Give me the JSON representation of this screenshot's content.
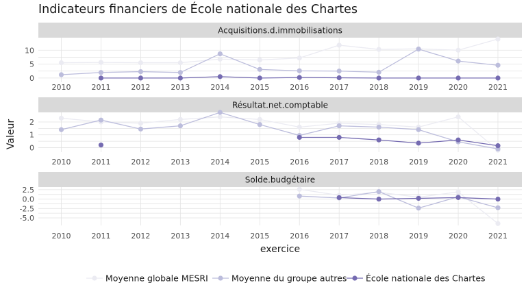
{
  "chart_data": {
    "type": "line",
    "title": "Indicateurs financiers de École nationale des Chartes",
    "xlabel": "exercice",
    "ylabel": "Valeur",
    "x": [
      2010,
      2011,
      2012,
      2013,
      2014,
      2015,
      2016,
      2017,
      2018,
      2019,
      2020,
      2021
    ],
    "legend": {
      "position": "bottom"
    },
    "panels": [
      {
        "name": "Acquisitions.d.immobilisations",
        "ylim": [
          -1.5,
          14.5
        ],
        "yticks": [
          0,
          5,
          10
        ],
        "yticklabels": [
          "0",
          "5",
          "10"
        ],
        "series": [
          {
            "name": "Moyenne globale MESRI",
            "color": "#ebebf2",
            "values": [
              5.5,
              5.6,
              5.5,
              5.5,
              6.8,
              6.5,
              7.2,
              11.8,
              10.3,
              10.5,
              10,
              14
            ]
          },
          {
            "name": "Moyenne du groupe autres",
            "color": "#bcbddc",
            "values": [
              1.2,
              2.0,
              2.3,
              2.0,
              8.7,
              3.1,
              2.6,
              2.5,
              2.1,
              10.4,
              6.1,
              4.6
            ]
          },
          {
            "name": "École nationale des Chartes",
            "color": "#756bb1",
            "values": [
              null,
              0,
              0,
              0,
              0.5,
              0,
              0.2,
              0.1,
              0,
              0,
              0,
              0
            ]
          }
        ]
      },
      {
        "name": "Résultat.net.comptable",
        "ylim": [
          -0.35,
          2.75
        ],
        "yticks": [
          0,
          1,
          2
        ],
        "yticklabels": [
          "0",
          "1",
          "2"
        ],
        "series": [
          {
            "name": "Moyenne globale MESRI",
            "color": "#ebebf2",
            "values": [
              2.3,
              2.0,
              1.9,
              2.2,
              2.4,
              2.2,
              1.6,
              1.9,
              1.8,
              1.6,
              2.4,
              -0.2
            ]
          },
          {
            "name": "Moyenne du groupe autres",
            "color": "#bcbddc",
            "values": [
              1.4,
              2.15,
              1.45,
              1.7,
              2.75,
              1.8,
              0.95,
              1.7,
              1.6,
              1.4,
              0.45,
              -0.1
            ]
          },
          {
            "name": "École nationale des Chartes",
            "color": "#756bb1",
            "values": [
              null,
              0.2,
              null,
              null,
              null,
              null,
              0.8,
              0.8,
              0.6,
              0.35,
              0.6,
              0.15
            ]
          }
        ]
      },
      {
        "name": "Solde.budgétaire",
        "ylim": [
          -7,
          3.2
        ],
        "yticks": [
          -5,
          -2.5,
          0,
          2.5
        ],
        "yticklabels": [
          "-5.0",
          "-2.5",
          "0.0",
          "2.5"
        ],
        "series": [
          {
            "name": "Moyenne globale MESRI",
            "color": "#ebebf2",
            "values": [
              null,
              null,
              null,
              null,
              null,
              null,
              2.6,
              1.0,
              1.8,
              0.5,
              1.9,
              -6.5
            ]
          },
          {
            "name": "Moyenne du groupe autres",
            "color": "#bcbddc",
            "values": [
              null,
              null,
              null,
              null,
              null,
              null,
              0.8,
              0.3,
              2.0,
              -2.4,
              0.6,
              -2.3
            ]
          },
          {
            "name": "École nationale des Chartes",
            "color": "#756bb1",
            "values": [
              null,
              null,
              null,
              null,
              null,
              null,
              null,
              0.4,
              0.0,
              0.2,
              0.4,
              0.0
            ]
          }
        ]
      }
    ]
  }
}
